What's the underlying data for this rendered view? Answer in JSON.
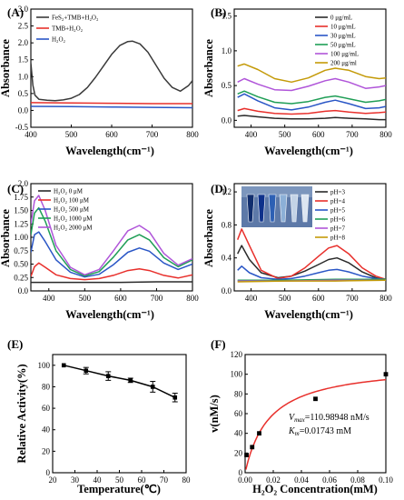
{
  "chart_data": [
    {
      "panel": "(A)",
      "type": "line",
      "xlabel": "Wavelength(cm⁻¹)",
      "ylabel": "Absorbance",
      "xlim": [
        400,
        800
      ],
      "ylim": [
        -0.5,
        3.0
      ],
      "xticks": [
        "400",
        "500",
        "600",
        "700",
        "800"
      ],
      "yticks": [
        "-0.5",
        "0.0",
        "0.5",
        "1.0",
        "1.5",
        "2.0",
        "2.5",
        "3.0"
      ],
      "legend": "top-left",
      "series": [
        {
          "name": "FeS₂+TMB+H₂O₂",
          "color": "#3a3a3a",
          "x": [
            400,
            405,
            410,
            420,
            440,
            460,
            480,
            500,
            520,
            540,
            560,
            580,
            600,
            620,
            640,
            652,
            670,
            690,
            710,
            730,
            750,
            770,
            790,
            800
          ],
          "y": [
            1.4,
            0.75,
            0.45,
            0.33,
            0.3,
            0.29,
            0.31,
            0.36,
            0.47,
            0.68,
            0.98,
            1.32,
            1.66,
            1.92,
            2.04,
            2.05,
            1.97,
            1.72,
            1.33,
            0.95,
            0.68,
            0.57,
            0.73,
            0.88
          ]
        },
        {
          "name": "TMB+H₂O₂",
          "color": "#e8302c",
          "x": [
            400,
            500,
            600,
            700,
            800
          ],
          "y": [
            0.23,
            0.22,
            0.21,
            0.2,
            0.2
          ]
        },
        {
          "name": "H₂O₂",
          "color": "#2a56c6",
          "x": [
            400,
            500,
            600,
            700,
            800
          ],
          "y": [
            0.12,
            0.11,
            0.1,
            0.09,
            0.08
          ]
        }
      ]
    },
    {
      "panel": "(B)",
      "type": "line",
      "xlabel": "Wavelength(cm⁻¹)",
      "ylabel": "Absorbance",
      "xlim": [
        350,
        800
      ],
      "ylim": [
        -0.1,
        1.6
      ],
      "xticks": [
        "400",
        "500",
        "600",
        "700",
        "800"
      ],
      "yticks": [
        "0.0",
        "0.5",
        "1.0",
        "1.5"
      ],
      "legend": "top-right",
      "series": [
        {
          "name": "0 μg/mL",
          "color": "#2a2a2a",
          "x": [
            360,
            380,
            420,
            470,
            520,
            570,
            620,
            650,
            690,
            740,
            780,
            800
          ],
          "y": [
            0.06,
            0.07,
            0.05,
            0.03,
            0.02,
            0.02,
            0.03,
            0.04,
            0.03,
            0.02,
            0.01,
            0.01
          ]
        },
        {
          "name": "10 μg/mL",
          "color": "#e8302c",
          "x": [
            360,
            380,
            420,
            470,
            520,
            570,
            620,
            650,
            690,
            740,
            780,
            800
          ],
          "y": [
            0.14,
            0.17,
            0.13,
            0.1,
            0.09,
            0.1,
            0.13,
            0.14,
            0.12,
            0.1,
            0.11,
            0.12
          ]
        },
        {
          "name": "30 μg/mL",
          "color": "#2a56c6",
          "x": [
            360,
            380,
            420,
            470,
            520,
            570,
            620,
            650,
            690,
            740,
            780,
            800
          ],
          "y": [
            0.33,
            0.38,
            0.28,
            0.18,
            0.15,
            0.19,
            0.26,
            0.29,
            0.24,
            0.17,
            0.18,
            0.2
          ]
        },
        {
          "name": "50 μg/mL",
          "color": "#1f9e56",
          "x": [
            360,
            380,
            420,
            470,
            520,
            570,
            620,
            650,
            690,
            740,
            780,
            800
          ],
          "y": [
            0.38,
            0.42,
            0.34,
            0.26,
            0.24,
            0.27,
            0.33,
            0.35,
            0.31,
            0.26,
            0.28,
            0.3
          ]
        },
        {
          "name": "100 μg/mL",
          "color": "#b055d9",
          "x": [
            360,
            380,
            420,
            470,
            520,
            570,
            620,
            650,
            690,
            740,
            780,
            800
          ],
          "y": [
            0.55,
            0.6,
            0.52,
            0.44,
            0.43,
            0.49,
            0.57,
            0.6,
            0.55,
            0.46,
            0.48,
            0.5
          ]
        },
        {
          "name": "200 μg/ml",
          "color": "#c49a08",
          "x": [
            360,
            380,
            420,
            470,
            520,
            570,
            620,
            650,
            690,
            740,
            780,
            800
          ],
          "y": [
            0.78,
            0.81,
            0.73,
            0.6,
            0.55,
            0.61,
            0.72,
            0.75,
            0.72,
            0.63,
            0.6,
            0.61
          ]
        }
      ]
    },
    {
      "panel": "(C)",
      "type": "line",
      "xlabel": "Wavelength(cm⁻¹)",
      "ylabel": "Absorbance",
      "xlim": [
        350,
        800
      ],
      "ylim": [
        0.0,
        2.0
      ],
      "xticks": [
        "400",
        "500",
        "600",
        "700",
        "800"
      ],
      "yticks": [
        "0.0",
        "0.25",
        "0.50",
        "0.75",
        "1.00",
        "1.25",
        "1.50",
        "1.75",
        "2.0"
      ],
      "legend": "top-left",
      "series": [
        {
          "name": "H₂O₂ 0 μM",
          "color": "#2a2a2a",
          "x": [
            350,
            400,
            500,
            600,
            700,
            800
          ],
          "y": [
            0.16,
            0.16,
            0.16,
            0.16,
            0.17,
            0.17
          ]
        },
        {
          "name": "H₂O₂ 100 μM",
          "color": "#e8302c",
          "x": [
            350,
            360,
            372,
            390,
            420,
            460,
            500,
            540,
            580,
            620,
            652,
            680,
            720,
            760,
            800
          ],
          "y": [
            0.27,
            0.45,
            0.52,
            0.44,
            0.3,
            0.23,
            0.21,
            0.23,
            0.29,
            0.38,
            0.41,
            0.38,
            0.29,
            0.24,
            0.3
          ]
        },
        {
          "name": "H₂O₂ 500 μM",
          "color": "#2a56c6",
          "x": [
            350,
            360,
            372,
            390,
            420,
            460,
            500,
            540,
            580,
            620,
            652,
            680,
            720,
            760,
            800
          ],
          "y": [
            0.72,
            1.05,
            1.1,
            0.92,
            0.58,
            0.35,
            0.26,
            0.31,
            0.49,
            0.72,
            0.8,
            0.74,
            0.52,
            0.4,
            0.5
          ]
        },
        {
          "name": "H₂O₂ 1000 μM",
          "color": "#1f9e56",
          "x": [
            350,
            360,
            372,
            390,
            420,
            460,
            500,
            540,
            580,
            620,
            652,
            680,
            720,
            760,
            800
          ],
          "y": [
            1.05,
            1.45,
            1.55,
            1.3,
            0.75,
            0.4,
            0.28,
            0.36,
            0.63,
            0.95,
            1.05,
            0.95,
            0.62,
            0.45,
            0.58
          ]
        },
        {
          "name": "H₂O₂ 2000 μM",
          "color": "#b055d9",
          "x": [
            350,
            360,
            372,
            390,
            420,
            460,
            500,
            540,
            580,
            620,
            652,
            680,
            720,
            760,
            800
          ],
          "y": [
            1.25,
            1.68,
            1.78,
            1.5,
            0.85,
            0.44,
            0.3,
            0.4,
            0.75,
            1.12,
            1.22,
            1.1,
            0.7,
            0.48,
            0.6
          ]
        }
      ]
    },
    {
      "panel": "(D)",
      "type": "line",
      "xlabel": "Wavelength(cm⁻¹)",
      "ylabel": "Absorbance",
      "xlim": [
        350,
        800
      ],
      "ylim": [
        0.0,
        1.3
      ],
      "xticks": [
        "400",
        "500",
        "600",
        "700",
        "800"
      ],
      "yticks": [
        "0.0",
        "0.4",
        "0.8",
        "1.2"
      ],
      "legend": "top-right",
      "series": [
        {
          "name": "pH=3",
          "color": "#2a2a2a",
          "x": [
            360,
            372,
            395,
            430,
            480,
            520,
            560,
            600,
            630,
            655,
            690,
            730,
            770,
            800
          ],
          "y": [
            0.45,
            0.55,
            0.38,
            0.22,
            0.16,
            0.18,
            0.24,
            0.32,
            0.38,
            0.4,
            0.34,
            0.23,
            0.16,
            0.13
          ]
        },
        {
          "name": "pH=4",
          "color": "#e8302c",
          "x": [
            360,
            372,
            395,
            430,
            480,
            520,
            560,
            600,
            630,
            655,
            690,
            730,
            770,
            800
          ],
          "y": [
            0.62,
            0.75,
            0.55,
            0.25,
            0.15,
            0.18,
            0.28,
            0.42,
            0.52,
            0.55,
            0.45,
            0.28,
            0.18,
            0.14
          ]
        },
        {
          "name": "pH=5",
          "color": "#2a56c6",
          "x": [
            360,
            372,
            395,
            430,
            480,
            520,
            560,
            600,
            630,
            655,
            690,
            730,
            770,
            800
          ],
          "y": [
            0.25,
            0.3,
            0.22,
            0.16,
            0.14,
            0.15,
            0.18,
            0.22,
            0.25,
            0.26,
            0.23,
            0.18,
            0.15,
            0.14
          ]
        },
        {
          "name": "pH=6",
          "color": "#1f9e56",
          "x": [
            360,
            500,
            650,
            800
          ],
          "y": [
            0.13,
            0.13,
            0.14,
            0.14
          ]
        },
        {
          "name": "pH=7",
          "color": "#b055d9",
          "x": [
            360,
            500,
            650,
            800
          ],
          "y": [
            0.12,
            0.12,
            0.13,
            0.13
          ]
        },
        {
          "name": "pH=8",
          "color": "#c49a08",
          "x": [
            360,
            500,
            650,
            800
          ],
          "y": [
            0.11,
            0.12,
            0.12,
            0.13
          ]
        }
      ]
    },
    {
      "panel": "(E)",
      "type": "line",
      "xlabel": "Temperature(℃)",
      "ylabel": "Relative Activity(%)",
      "xlim": [
        20,
        80
      ],
      "ylim": [
        0,
        110
      ],
      "xticks": [
        "20",
        "30",
        "40",
        "50",
        "60",
        "70",
        "80"
      ],
      "yticks": [
        "0",
        "20",
        "40",
        "60",
        "80",
        "100"
      ],
      "series": [
        {
          "color": "#000000",
          "x": [
            25,
            35,
            45,
            55,
            65,
            75
          ],
          "y": [
            100,
            95,
            90,
            86,
            80,
            70
          ],
          "err": [
            0,
            3,
            4,
            2,
            5,
            4
          ]
        }
      ]
    },
    {
      "panel": "(F)",
      "type": "scatter",
      "xlabel": "H₂O₂ Concentration(mM)",
      "ylabel": "v(nM/s)",
      "xlim": [
        0,
        0.1
      ],
      "ylim": [
        0,
        120
      ],
      "xticks": [
        "0.00",
        "0.02",
        "0.04",
        "0.06",
        "0.08",
        "0.10"
      ],
      "yticks": [
        "0",
        "20",
        "40",
        "60",
        "80",
        "100",
        "120"
      ],
      "vmax": 110.98948,
      "km": 0.01743,
      "points": {
        "x": [
          0.001,
          0.005,
          0.01,
          0.05,
          0.1
        ],
        "y": [
          18,
          26,
          40,
          75,
          100
        ]
      },
      "fit_color": "#e8302c",
      "annotation_vmax_label": "V",
      "annotation_vmax_sub": "max",
      "annotation_vmax_text": "=110.98948 nM/s",
      "annotation_km_label": "K",
      "annotation_km_sub": "m",
      "annotation_km_text": "=0.01743 mM"
    }
  ]
}
